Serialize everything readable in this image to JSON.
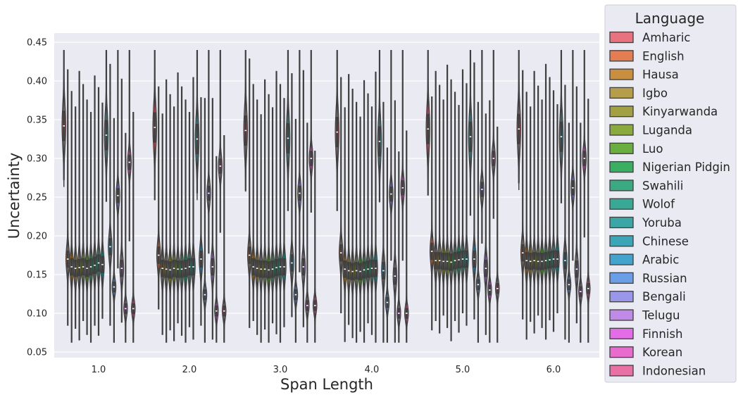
{
  "chart_data": {
    "type": "violin",
    "xlabel": "Span Length",
    "ylabel": "Uncertainty",
    "categories": [
      "1.0",
      "2.0",
      "3.0",
      "4.0",
      "5.0",
      "6.0"
    ],
    "ylim": [
      0.045,
      0.46
    ],
    "yticks": [
      "0.05",
      "0.10",
      "0.15",
      "0.20",
      "0.25",
      "0.30",
      "0.35",
      "0.40",
      "0.45"
    ],
    "ytick_values": [
      0.05,
      0.1,
      0.15,
      0.2,
      0.25,
      0.3,
      0.35,
      0.4,
      0.45
    ],
    "grid": true,
    "legend": {
      "title": "Language",
      "placement": "right, outside plot",
      "entries": [
        {
          "name": "Amharic",
          "color": "#e8737f"
        },
        {
          "name": "English",
          "color": "#e47d51"
        },
        {
          "name": "Hausa",
          "color": "#c98e3e"
        },
        {
          "name": "Igbo",
          "color": "#b59d4a"
        },
        {
          "name": "Kinyarwanda",
          "color": "#a2a045"
        },
        {
          "name": "Luganda",
          "color": "#8aa93e"
        },
        {
          "name": "Luo",
          "color": "#6aae42"
        },
        {
          "name": "Nigerian Pidgin",
          "color": "#3aaf62"
        },
        {
          "name": "Swahili",
          "color": "#3aaa82"
        },
        {
          "name": "Wolof",
          "color": "#38a995"
        },
        {
          "name": "Yoruba",
          "color": "#3aa7a6"
        },
        {
          "name": "Chinese",
          "color": "#3ca6b8"
        },
        {
          "name": "Arabic",
          "color": "#44a3cc"
        },
        {
          "name": "Russian",
          "color": "#6a9fe8"
        },
        {
          "name": "Bengali",
          "color": "#9a96ea"
        },
        {
          "name": "Telugu",
          "color": "#c08ae8"
        },
        {
          "name": "Finnish",
          "color": "#e46ce6"
        },
        {
          "name": "Korean",
          "color": "#e86ccd"
        },
        {
          "name": "Indonesian",
          "color": "#e870a4"
        }
      ]
    },
    "series_medians": [
      {
        "name": "Amharic",
        "values": [
          0.342,
          0.34,
          0.336,
          0.334,
          0.338,
          0.338
        ]
      },
      {
        "name": "English",
        "values": [
          0.17,
          0.175,
          0.175,
          0.178,
          0.18,
          0.178
        ]
      },
      {
        "name": "Hausa",
        "values": [
          0.16,
          0.158,
          0.16,
          0.157,
          0.168,
          0.168
        ]
      },
      {
        "name": "Igbo",
        "values": [
          0.158,
          0.157,
          0.158,
          0.155,
          0.168,
          0.167
        ]
      },
      {
        "name": "Kinyarwanda",
        "values": [
          0.159,
          0.156,
          0.157,
          0.154,
          0.167,
          0.168
        ]
      },
      {
        "name": "Luganda",
        "values": [
          0.16,
          0.158,
          0.157,
          0.155,
          0.167,
          0.167
        ]
      },
      {
        "name": "Luo",
        "values": [
          0.158,
          0.157,
          0.156,
          0.154,
          0.166,
          0.167
        ]
      },
      {
        "name": "Nigerian Pidgin",
        "values": [
          0.16,
          0.157,
          0.157,
          0.156,
          0.168,
          0.168
        ]
      },
      {
        "name": "Swahili",
        "values": [
          0.162,
          0.158,
          0.159,
          0.157,
          0.169,
          0.169
        ]
      },
      {
        "name": "Wolof",
        "values": [
          0.165,
          0.16,
          0.16,
          0.158,
          0.17,
          0.17
        ]
      },
      {
        "name": "Yoruba",
        "values": [
          0.163,
          0.16,
          0.16,
          0.158,
          0.17,
          0.17
        ]
      },
      {
        "name": "Chinese",
        "values": [
          0.33,
          0.325,
          0.326,
          0.322,
          0.328,
          0.328
        ]
      },
      {
        "name": "Arabic",
        "values": [
          0.186,
          0.17,
          0.165,
          0.155,
          0.17,
          0.168
        ]
      },
      {
        "name": "Russian",
        "values": [
          0.134,
          0.124,
          0.124,
          0.114,
          0.137,
          0.137
        ]
      },
      {
        "name": "Bengali",
        "values": [
          0.252,
          0.255,
          0.255,
          0.254,
          0.26,
          0.262
        ]
      },
      {
        "name": "Telugu",
        "values": [
          0.158,
          0.16,
          0.16,
          0.148,
          0.158,
          0.157
        ]
      },
      {
        "name": "Finnish",
        "values": [
          0.106,
          0.103,
          0.11,
          0.1,
          0.13,
          0.128
        ]
      },
      {
        "name": "Korean",
        "values": [
          0.295,
          0.29,
          0.3,
          0.262,
          0.3,
          0.3
        ]
      },
      {
        "name": "Indonesian",
        "values": [
          0.106,
          0.103,
          0.11,
          0.1,
          0.132,
          0.132
        ]
      }
    ]
  }
}
